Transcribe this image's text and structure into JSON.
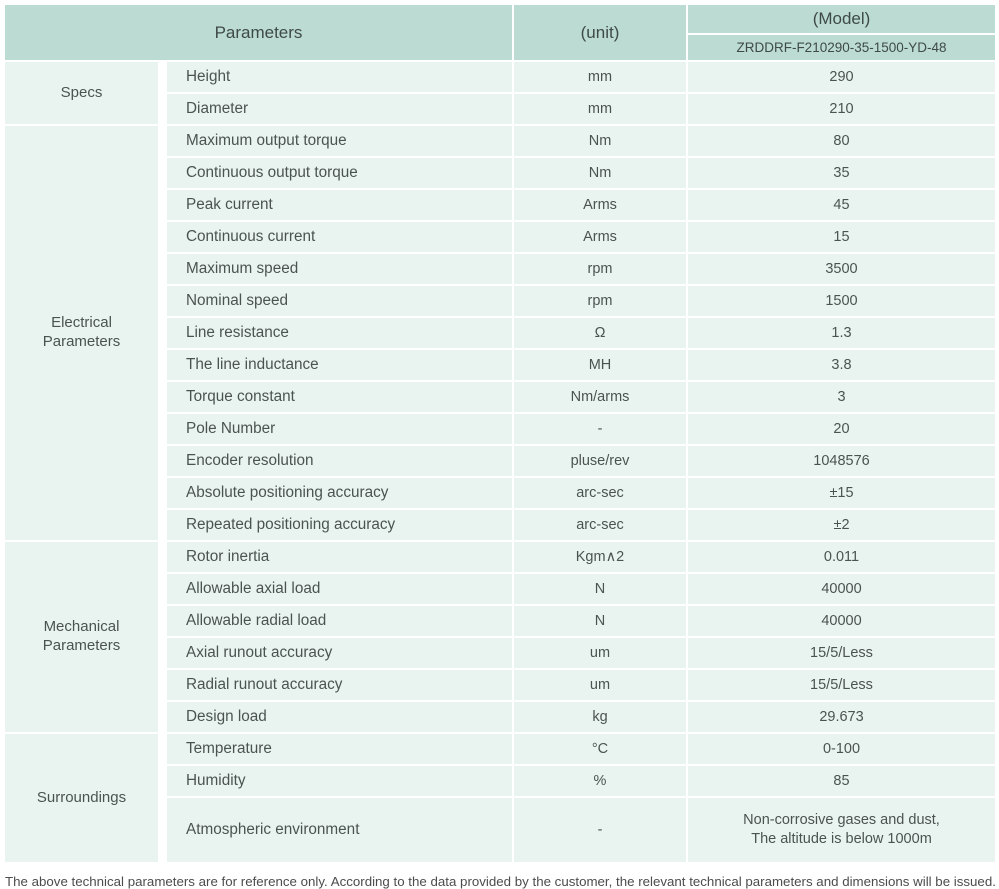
{
  "header": {
    "parameters": "Parameters",
    "unit": "(unit)",
    "model": "(Model)",
    "model_number": "ZRDDRF-F210290-35-1500-YD-48"
  },
  "colors": {
    "header_bg": "#bcdcd3",
    "row_bg": "#e9f4f1",
    "header_text": "#3f4a47",
    "text": "#4b5350",
    "footnote_text": "#4c4c4c"
  },
  "groups": [
    {
      "label": "Specs",
      "rows": [
        {
          "param": "Height",
          "unit": "mm",
          "value": "290"
        },
        {
          "param": "Diameter",
          "unit": "mm",
          "value": "210"
        }
      ]
    },
    {
      "label": "Electrical Parameters",
      "rows": [
        {
          "param": "Maximum output torque",
          "unit": "Nm",
          "value": "80"
        },
        {
          "param": "Continuous output torque",
          "unit": "Nm",
          "value": "35"
        },
        {
          "param": "Peak current",
          "unit": "Arms",
          "value": "45"
        },
        {
          "param": "Continuous current",
          "unit": "Arms",
          "value": "15"
        },
        {
          "param": "Maximum speed",
          "unit": "rpm",
          "value": "3500"
        },
        {
          "param": "Nominal speed",
          "unit": "rpm",
          "value": "1500"
        },
        {
          "param": "Line resistance",
          "unit": "Ω",
          "value": "1.3"
        },
        {
          "param": "The line inductance",
          "unit": "MH",
          "value": "3.8"
        },
        {
          "param": "Torque constant",
          "unit": "Nm/arms",
          "value": "3"
        },
        {
          "param": "Pole Number",
          "unit": "-",
          "value": "20"
        },
        {
          "param": "Encoder resolution",
          "unit": "pluse/rev",
          "value": "1048576"
        },
        {
          "param": "Absolute positioning accuracy",
          "unit": "arc-sec",
          "value": "±15"
        },
        {
          "param": "Repeated positioning accuracy",
          "unit": "arc-sec",
          "value": "±2"
        }
      ]
    },
    {
      "label": "Mechanical Parameters",
      "rows": [
        {
          "param": "Rotor inertia",
          "unit": "Kgm∧2",
          "value": "0.011"
        },
        {
          "param": "Allowable axial load",
          "unit": "N",
          "value": "40000"
        },
        {
          "param": "Allowable radial load",
          "unit": "N",
          "value": "40000"
        },
        {
          "param": "Axial runout accuracy",
          "unit": "um",
          "value": "15/5/Less"
        },
        {
          "param": "Radial runout accuracy",
          "unit": "um",
          "value": "15/5/Less"
        },
        {
          "param": "Design load",
          "unit": "kg",
          "value": "29.673"
        }
      ]
    },
    {
      "label": "Surroundings",
      "rows": [
        {
          "param": "Temperature",
          "unit": "°C",
          "value": "0-100"
        },
        {
          "param": "Humidity",
          "unit": "%",
          "value": "85"
        },
        {
          "param": "Atmospheric environment",
          "unit": "-",
          "value": "Non-corrosive gases and dust,\nThe altitude is below 1000m",
          "tall": true
        }
      ]
    }
  ],
  "footnote": "The above technical parameters are for reference only. According to the data provided by the customer, the relevant technical parameters and dimensions will be issued."
}
